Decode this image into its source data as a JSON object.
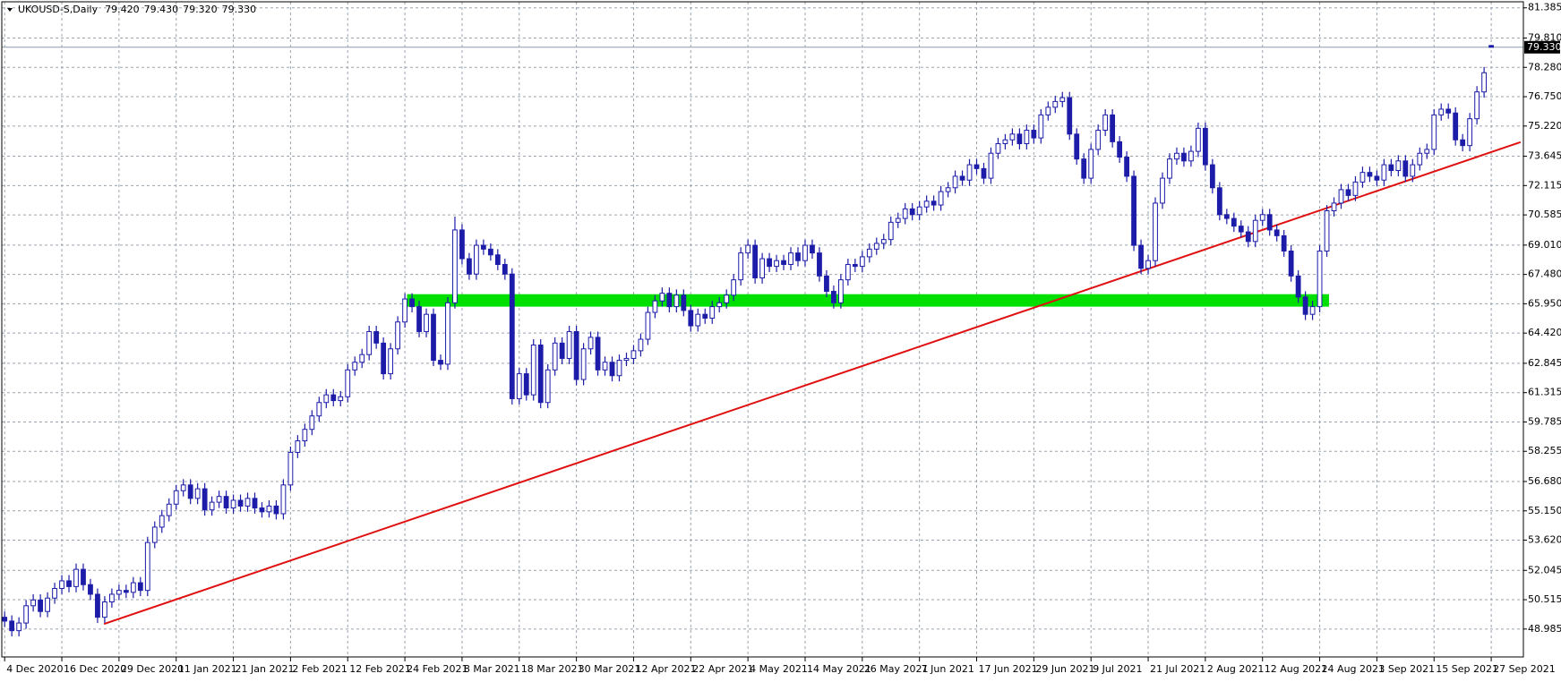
{
  "chart_data": {
    "type": "candlestick",
    "title": "UKOUSD-S,Daily",
    "header_values": [
      {
        "value": 79.42,
        "label": "79.420"
      },
      {
        "value": 79.43,
        "label": "79.430"
      },
      {
        "value": 79.32,
        "label": "79.320"
      },
      {
        "value": 79.33,
        "label": "79.330"
      }
    ],
    "current_price": {
      "value": 79.33,
      "label": "79.330"
    },
    "up_color": "#ffffff",
    "down_color": "#1c1ca8",
    "outline_color": "#1c1ca8",
    "grid": true,
    "ylim": [
      47.53,
      81.7
    ],
    "xlim": [
      -0.4,
      212.5
    ],
    "yticks": [
      81.385,
      {
        "value": 79.81,
        "label": "79.810"
      },
      {
        "value": 78.28,
        "label": "78.280"
      },
      {
        "value": 76.75,
        "label": "76.750"
      },
      {
        "value": 75.22,
        "label": "75.220"
      },
      73.645,
      72.115,
      70.585,
      {
        "value": 69.01,
        "label": "69.010"
      },
      {
        "value": 67.48,
        "label": "67.480"
      },
      {
        "value": 65.95,
        "label": "65.950"
      },
      {
        "value": 64.42,
        "label": "64.420"
      },
      62.845,
      61.315,
      59.785,
      58.255,
      {
        "value": 56.68,
        "label": "56.680"
      },
      {
        "value": 55.15,
        "label": "55.150"
      },
      {
        "value": 53.62,
        "label": "53.620"
      },
      52.045,
      50.515,
      48.985
    ],
    "xticks": [
      {
        "value": 0,
        "label": "4 Dec 2020"
      },
      {
        "value": 8,
        "label": "16 Dec 2020"
      },
      {
        "value": 16,
        "label": "29 Dec 2020"
      },
      {
        "value": 24,
        "label": "11 Jan 2021"
      },
      {
        "value": 32,
        "label": "21 Jan 2021"
      },
      {
        "value": 40,
        "label": "2 Feb 2021"
      },
      {
        "value": 48,
        "label": "12 Feb 2021"
      },
      {
        "value": 56,
        "label": "24 Feb 2021"
      },
      {
        "value": 64,
        "label": "8 Mar 2021"
      },
      {
        "value": 72,
        "label": "18 Mar 2021"
      },
      {
        "value": 80,
        "label": "30 Mar 2021"
      },
      {
        "value": 88,
        "label": "12 Apr 2021"
      },
      {
        "value": 96,
        "label": "22 Apr 2021"
      },
      {
        "value": 104,
        "label": "4 May 2021"
      },
      {
        "value": 112,
        "label": "14 May 2021"
      },
      {
        "value": 120,
        "label": "26 May 2021"
      },
      {
        "value": 128,
        "label": "7 Jun 2021"
      },
      {
        "value": 136,
        "label": "17 Jun 2021"
      },
      {
        "value": 144,
        "label": "29 Jun 2021"
      },
      {
        "value": 152,
        "label": "9 Jul 2021"
      },
      {
        "value": 160,
        "label": "21 Jul 2021"
      },
      {
        "value": 168,
        "label": "2 Aug 2021"
      },
      {
        "value": 176,
        "label": "12 Aug 2021"
      },
      {
        "value": 184,
        "label": "24 Aug 2021"
      },
      {
        "value": 192,
        "label": "3 Sep 2021"
      },
      {
        "value": 200,
        "label": "15 Sep 2021"
      },
      {
        "value": 208,
        "label": "27 Sep 2021"
      }
    ],
    "open": [
      49.6,
      49.4,
      48.9,
      49.3,
      50.2,
      50.5,
      49.9,
      50.6,
      51.1,
      51.5,
      51.2,
      52.1,
      51.3,
      50.8,
      49.6,
      50.4,
      50.8,
      51.0,
      50.9,
      51.4,
      51.0,
      53.5,
      54.3,
      54.9,
      55.5,
      56.2,
      56.5,
      55.8,
      56.3,
      55.2,
      55.6,
      55.9,
      55.3,
      55.7,
      55.4,
      55.8,
      55.3,
      55.1,
      55.4,
      55.0,
      56.5,
      58.2,
      58.8,
      59.4,
      60.1,
      60.8,
      61.2,
      60.9,
      61.1,
      62.5,
      62.9,
      63.3,
      64.5,
      63.9,
      62.3,
      63.6,
      65.0,
      66.2,
      65.8,
      64.5,
      65.4,
      63.0,
      62.8,
      66.0,
      69.8,
      68.3,
      67.5,
      69.0,
      68.8,
      68.5,
      68.0,
      67.5,
      61.0,
      62.3,
      61.2,
      63.8,
      60.8,
      62.5,
      63.9,
      63.1,
      64.5,
      62.0,
      63.6,
      64.2,
      62.5,
      62.9,
      62.2,
      63.0,
      63.1,
      63.5,
      64.1,
      65.5,
      66.1,
      66.5,
      65.8,
      66.4,
      65.6,
      64.8,
      65.4,
      65.2,
      65.8,
      66.0,
      66.4,
      67.2,
      68.6,
      69.0,
      67.3,
      68.3,
      67.9,
      68.2,
      68.0,
      68.6,
      68.2,
      69.0,
      68.6,
      67.4,
      66.6,
      66.0,
      67.2,
      68.0,
      67.9,
      68.4,
      68.8,
      69.1,
      69.3,
      70.2,
      70.4,
      70.9,
      70.6,
      71.0,
      71.3,
      71.1,
      71.8,
      72.0,
      72.6,
      72.4,
      73.2,
      73.0,
      72.5,
      73.8,
      74.3,
      74.5,
      74.8,
      74.3,
      75.0,
      74.6,
      75.8,
      76.2,
      76.5,
      76.7,
      74.8,
      73.5,
      72.5,
      74.0,
      75.0,
      75.8,
      74.4,
      73.6,
      72.6,
      69.0,
      67.8,
      68.2,
      71.2,
      72.5,
      73.5,
      73.8,
      73.4,
      73.9,
      75.1,
      73.2,
      72.0,
      70.6,
      70.4,
      70.0,
      69.7,
      69.2,
      70.3,
      70.6,
      69.8,
      69.5,
      68.7,
      67.4,
      66.3,
      65.4,
      65.8,
      68.7,
      70.8,
      71.2,
      71.9,
      71.6,
      72.3,
      72.8,
      72.6,
      72.4,
      73.2,
      72.9,
      73.4,
      72.6,
      73.2,
      73.8,
      74.0,
      75.8,
      76.1,
      75.9,
      74.5,
      74.2,
      75.6,
      77.0,
      79.42
    ],
    "high": [
      49.9,
      49.7,
      49.6,
      50.5,
      50.8,
      50.8,
      50.9,
      51.4,
      51.8,
      51.8,
      52.4,
      52.4,
      51.6,
      51.1,
      50.7,
      51.1,
      51.3,
      51.3,
      51.7,
      51.7,
      53.8,
      54.6,
      55.2,
      55.8,
      56.5,
      56.8,
      56.8,
      56.6,
      56.6,
      55.9,
      56.2,
      56.2,
      56.0,
      56.0,
      56.1,
      56.1,
      55.6,
      55.7,
      55.7,
      56.8,
      58.5,
      59.1,
      59.7,
      60.4,
      61.1,
      61.5,
      61.5,
      61.4,
      62.8,
      63.2,
      63.6,
      64.8,
      64.8,
      64.2,
      63.9,
      65.3,
      66.5,
      66.5,
      66.1,
      65.7,
      65.7,
      63.3,
      66.3,
      70.5,
      70.1,
      68.6,
      69.3,
      69.3,
      69.1,
      68.8,
      68.3,
      67.8,
      62.6,
      62.6,
      64.1,
      64.1,
      62.8,
      64.2,
      64.2,
      64.8,
      64.8,
      63.9,
      64.5,
      64.5,
      63.2,
      63.2,
      63.3,
      63.4,
      63.8,
      64.4,
      65.8,
      66.4,
      66.8,
      66.8,
      66.7,
      66.7,
      65.9,
      65.7,
      65.7,
      66.1,
      66.3,
      66.7,
      67.5,
      68.9,
      69.3,
      69.3,
      68.6,
      68.6,
      68.5,
      68.5,
      68.9,
      68.9,
      69.3,
      69.3,
      68.9,
      67.7,
      66.9,
      67.5,
      68.3,
      68.3,
      68.7,
      69.1,
      69.4,
      69.6,
      70.5,
      70.7,
      71.2,
      71.2,
      71.3,
      71.6,
      71.6,
      72.1,
      72.3,
      72.9,
      72.9,
      73.5,
      73.5,
      73.3,
      74.1,
      74.6,
      74.8,
      75.1,
      75.1,
      75.3,
      75.3,
      76.1,
      76.5,
      76.8,
      77.0,
      77.0,
      75.1,
      73.8,
      74.3,
      75.3,
      76.1,
      76.1,
      74.7,
      73.9,
      72.9,
      69.3,
      68.5,
      71.5,
      72.8,
      73.8,
      74.1,
      74.1,
      74.2,
      75.4,
      75.4,
      73.5,
      72.3,
      70.9,
      70.7,
      70.3,
      70.0,
      70.6,
      70.9,
      70.9,
      70.1,
      69.8,
      69.0,
      67.7,
      66.6,
      66.1,
      69.0,
      71.1,
      71.5,
      72.2,
      72.2,
      72.6,
      73.1,
      73.1,
      72.9,
      73.5,
      73.5,
      73.7,
      73.7,
      73.5,
      74.1,
      74.3,
      76.1,
      76.4,
      76.4,
      76.2,
      74.8,
      75.9,
      77.3,
      78.3,
      79.43
    ],
    "low": [
      49.1,
      48.6,
      48.6,
      49.0,
      49.9,
      49.6,
      49.6,
      50.3,
      50.8,
      50.9,
      50.9,
      51.0,
      50.5,
      49.3,
      49.3,
      50.1,
      50.5,
      50.6,
      50.6,
      50.7,
      50.7,
      53.2,
      54.0,
      54.6,
      55.2,
      55.9,
      55.5,
      55.5,
      54.9,
      54.9,
      55.3,
      55.0,
      55.0,
      55.1,
      55.1,
      55.0,
      54.8,
      54.8,
      54.7,
      54.7,
      56.2,
      57.9,
      58.5,
      59.1,
      59.8,
      60.5,
      60.6,
      60.6,
      60.8,
      62.2,
      62.6,
      63.0,
      63.6,
      62.0,
      62.0,
      63.3,
      64.7,
      65.5,
      64.2,
      64.2,
      62.7,
      62.5,
      62.5,
      65.7,
      68.0,
      67.2,
      67.2,
      68.5,
      68.2,
      67.7,
      67.2,
      60.7,
      60.7,
      60.9,
      60.9,
      60.5,
      60.5,
      62.2,
      62.8,
      62.8,
      61.7,
      61.7,
      63.3,
      62.2,
      62.2,
      61.9,
      61.9,
      62.7,
      62.8,
      63.2,
      63.8,
      65.2,
      65.8,
      65.5,
      65.5,
      65.3,
      64.5,
      64.5,
      64.9,
      64.9,
      65.5,
      65.7,
      66.1,
      66.9,
      68.3,
      67.0,
      67.0,
      67.6,
      67.6,
      67.7,
      67.7,
      67.9,
      67.9,
      68.3,
      67.1,
      66.3,
      65.7,
      65.7,
      66.9,
      67.6,
      67.6,
      68.1,
      68.5,
      68.8,
      69.0,
      69.9,
      70.1,
      70.3,
      70.3,
      70.7,
      70.8,
      70.8,
      71.5,
      71.7,
      72.1,
      72.1,
      72.7,
      72.2,
      72.2,
      73.5,
      74.0,
      74.2,
      74.0,
      74.0,
      74.3,
      74.3,
      75.5,
      75.9,
      76.2,
      74.5,
      73.2,
      72.2,
      72.2,
      73.7,
      74.7,
      74.1,
      73.3,
      72.3,
      68.7,
      67.5,
      67.5,
      67.9,
      70.9,
      72.2,
      73.2,
      73.1,
      73.1,
      73.6,
      72.9,
      71.7,
      70.3,
      70.1,
      69.7,
      69.4,
      68.9,
      68.9,
      70.0,
      69.5,
      69.2,
      68.4,
      67.1,
      66.0,
      65.1,
      65.1,
      65.5,
      68.4,
      70.5,
      70.9,
      71.3,
      71.3,
      72.0,
      72.3,
      72.1,
      72.1,
      72.6,
      72.6,
      72.3,
      72.3,
      72.9,
      73.5,
      73.7,
      75.5,
      75.6,
      74.2,
      73.9,
      73.9,
      75.3,
      76.7,
      79.32
    ],
    "close": [
      49.4,
      48.9,
      49.3,
      50.2,
      50.5,
      49.9,
      50.6,
      51.1,
      51.5,
      51.2,
      52.1,
      51.3,
      50.8,
      49.6,
      50.4,
      50.8,
      51.0,
      50.9,
      51.4,
      51.0,
      53.5,
      54.3,
      54.9,
      55.5,
      56.2,
      56.5,
      55.8,
      56.3,
      55.2,
      55.6,
      55.9,
      55.3,
      55.7,
      55.4,
      55.8,
      55.3,
      55.1,
      55.4,
      55.0,
      56.5,
      58.2,
      58.8,
      59.4,
      60.1,
      60.8,
      61.2,
      60.9,
      61.1,
      62.5,
      62.9,
      63.3,
      64.5,
      63.9,
      62.3,
      63.6,
      65.0,
      66.2,
      65.8,
      64.5,
      65.4,
      63.0,
      62.8,
      66.0,
      69.8,
      68.3,
      67.5,
      69.0,
      68.8,
      68.5,
      68.0,
      67.5,
      61.0,
      62.3,
      61.2,
      63.8,
      60.8,
      62.5,
      63.9,
      63.1,
      64.5,
      62.0,
      63.6,
      64.2,
      62.5,
      62.9,
      62.2,
      63.0,
      63.1,
      63.5,
      64.1,
      65.5,
      66.1,
      66.5,
      65.8,
      66.4,
      65.6,
      64.8,
      65.4,
      65.2,
      65.8,
      66.0,
      66.4,
      67.2,
      68.6,
      69.0,
      67.3,
      68.3,
      67.9,
      68.2,
      68.0,
      68.6,
      68.2,
      69.0,
      68.6,
      67.4,
      66.6,
      66.0,
      67.2,
      68.0,
      67.9,
      68.4,
      68.8,
      69.1,
      69.3,
      70.2,
      70.4,
      70.9,
      70.6,
      71.0,
      71.3,
      71.1,
      71.8,
      72.0,
      72.6,
      72.4,
      73.2,
      73.0,
      72.5,
      73.8,
      74.3,
      74.5,
      74.8,
      74.3,
      75.0,
      74.6,
      75.8,
      76.2,
      76.5,
      76.7,
      74.8,
      73.5,
      72.5,
      74.0,
      75.0,
      75.8,
      74.4,
      73.6,
      72.6,
      69.0,
      67.8,
      68.2,
      71.2,
      72.5,
      73.5,
      73.8,
      73.4,
      73.9,
      75.1,
      73.2,
      72.0,
      70.6,
      70.4,
      70.0,
      69.7,
      69.2,
      70.3,
      70.6,
      69.8,
      69.5,
      68.7,
      67.4,
      66.3,
      65.4,
      65.8,
      68.7,
      70.8,
      71.2,
      71.9,
      71.6,
      72.3,
      72.8,
      72.6,
      72.4,
      73.2,
      72.9,
      73.4,
      72.6,
      73.2,
      73.8,
      74.0,
      75.8,
      76.1,
      75.9,
      74.5,
      74.2,
      75.6,
      77.0,
      78.0,
      79.33
    ],
    "trendline": {
      "x": [
        13.9,
        212.1
      ],
      "y": [
        49.25,
        74.38
      ],
      "color": "#e01010"
    },
    "zone": {
      "x": [
        56.3,
        185.3
      ],
      "y": [
        65.8,
        66.45
      ],
      "color": "#00e000"
    }
  }
}
